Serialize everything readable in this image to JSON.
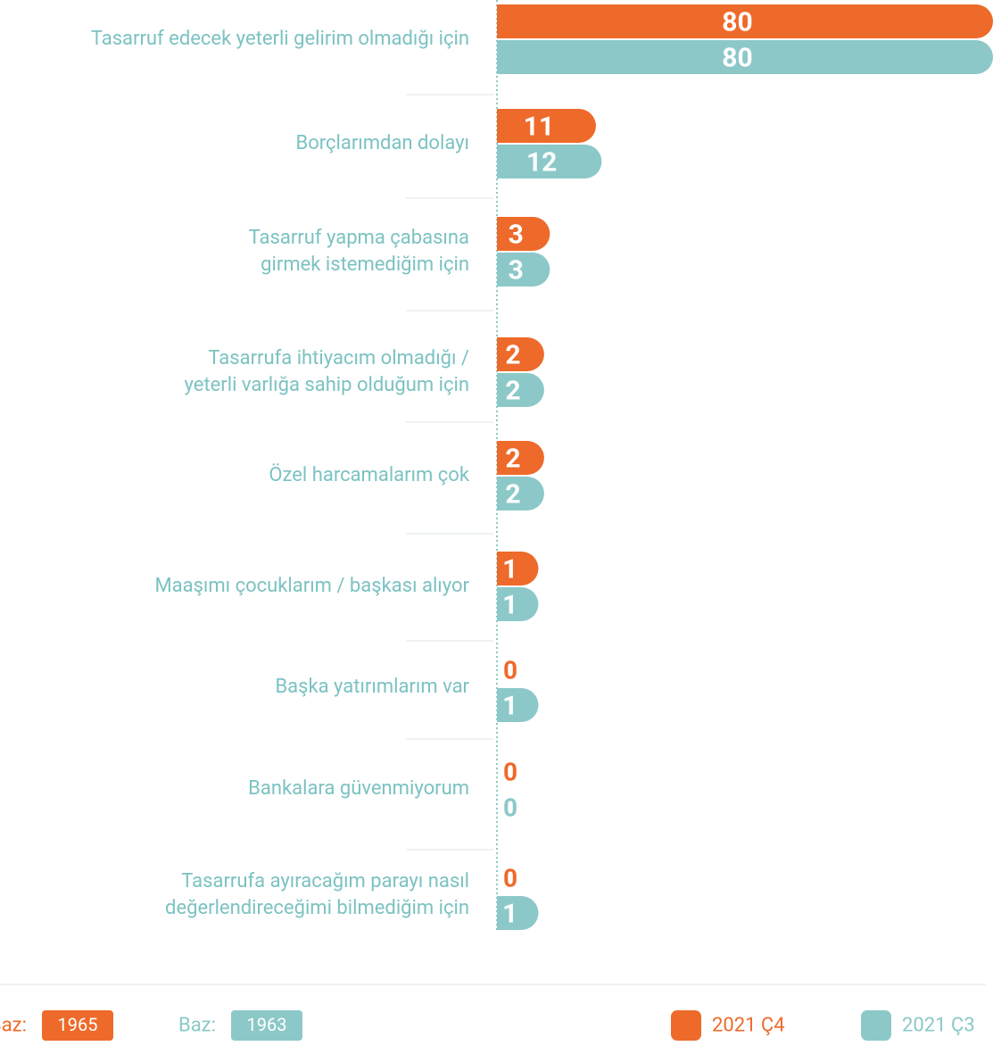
{
  "chart_data": {
    "type": "bar",
    "orientation": "horizontal",
    "categories": [
      "Tasarruf edecek yeterli gelirim olmadığı için",
      "Borçlarımdan dolayı",
      "Tasarruf yapma çabasına\ngirmek istemediğim için",
      "Tasarrufa ihtiyacım olmadığı /\nyeterli varlığa sahip olduğum için",
      "Özel harcamalarım çok",
      "Maaşımı çocuklarım / başkası alıyor",
      "Başka yatırımlarım var",
      "Bankalara güvenmiyorum",
      "Tasarrufa ayıracağım parayı nasıl\ndeğerlendireceğimi bilmediğim için"
    ],
    "base_label": "Baz:",
    "series": [
      {
        "name": "2021 Ç4",
        "color": "#ee6a2a",
        "base": 1965,
        "values": [
          80,
          11,
          3,
          2,
          2,
          1,
          0,
          0,
          0
        ]
      },
      {
        "name": "2021 Ç3",
        "color": "#8cc8c8",
        "base": 1963,
        "values": [
          80,
          12,
          3,
          2,
          2,
          1,
          1,
          0,
          1
        ]
      }
    ],
    "xlim": [
      0,
      80
    ],
    "legend": "bottom-right"
  }
}
